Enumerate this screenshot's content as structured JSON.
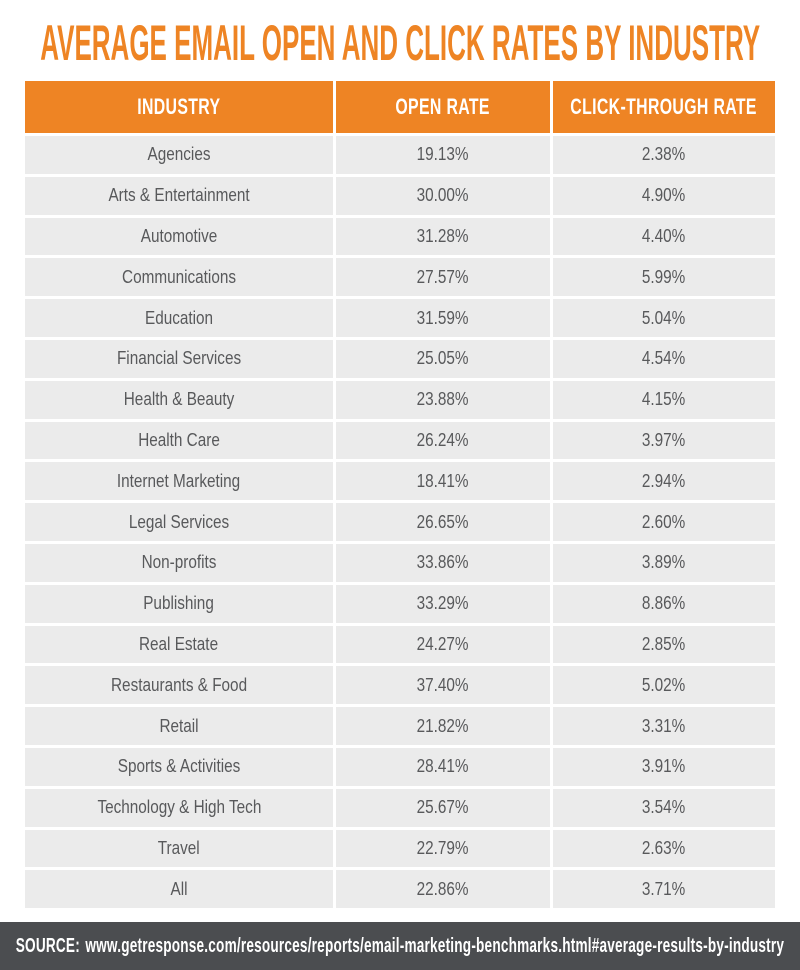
{
  "title": "AVERAGE EMAIL OPEN AND CLICK RATES BY INDUSTRY",
  "colors": {
    "accent_orange": "#EE8424",
    "row_bg": "#EBEBEB",
    "body_text": "#58595B",
    "footer_bg": "#4B4D50",
    "header_text": "#FFFFFF",
    "footer_text": "#FFFFFF"
  },
  "table": {
    "headers": [
      "INDUSTRY",
      "OPEN RATE",
      "CLICK-THROUGH RATE"
    ],
    "rows": [
      {
        "industry": "Agencies",
        "open_rate": "19.13%",
        "click_rate": "2.38%"
      },
      {
        "industry": "Arts & Entertainment",
        "open_rate": "30.00%",
        "click_rate": "4.90%"
      },
      {
        "industry": "Automotive",
        "open_rate": "31.28%",
        "click_rate": "4.40%"
      },
      {
        "industry": "Communications",
        "open_rate": "27.57%",
        "click_rate": "5.99%"
      },
      {
        "industry": "Education",
        "open_rate": "31.59%",
        "click_rate": "5.04%"
      },
      {
        "industry": "Financial Services",
        "open_rate": "25.05%",
        "click_rate": "4.54%"
      },
      {
        "industry": "Health & Beauty",
        "open_rate": "23.88%",
        "click_rate": "4.15%"
      },
      {
        "industry": "Health Care",
        "open_rate": "26.24%",
        "click_rate": "3.97%"
      },
      {
        "industry": "Internet Marketing",
        "open_rate": "18.41%",
        "click_rate": "2.94%"
      },
      {
        "industry": "Legal Services",
        "open_rate": "26.65%",
        "click_rate": "2.60%"
      },
      {
        "industry": "Non-profits",
        "open_rate": "33.86%",
        "click_rate": "3.89%"
      },
      {
        "industry": "Publishing",
        "open_rate": "33.29%",
        "click_rate": "8.86%"
      },
      {
        "industry": "Real Estate",
        "open_rate": "24.27%",
        "click_rate": "2.85%"
      },
      {
        "industry": "Restaurants & Food",
        "open_rate": "37.40%",
        "click_rate": "5.02%"
      },
      {
        "industry": "Retail",
        "open_rate": "21.82%",
        "click_rate": "3.31%"
      },
      {
        "industry": "Sports & Activities",
        "open_rate": "28.41%",
        "click_rate": "3.91%"
      },
      {
        "industry": "Technology & High Tech",
        "open_rate": "25.67%",
        "click_rate": "3.54%"
      },
      {
        "industry": "Travel",
        "open_rate": "22.79%",
        "click_rate": "2.63%"
      },
      {
        "industry": "All",
        "open_rate": "22.86%",
        "click_rate": "3.71%"
      }
    ]
  },
  "footer": {
    "source_label": "SOURCE:",
    "source_url": "www.getresponse.com/resources/reports/email-marketing-benchmarks.html#average-results-by-industry"
  },
  "chart_data": {
    "type": "table",
    "title": "AVERAGE EMAIL OPEN AND CLICK RATES BY INDUSTRY",
    "columns": [
      "Industry",
      "Open Rate (%)",
      "Click-Through Rate (%)"
    ],
    "rows": [
      [
        "Agencies",
        19.13,
        2.38
      ],
      [
        "Arts & Entertainment",
        30.0,
        4.9
      ],
      [
        "Automotive",
        31.28,
        4.4
      ],
      [
        "Communications",
        27.57,
        5.99
      ],
      [
        "Education",
        31.59,
        5.04
      ],
      [
        "Financial Services",
        25.05,
        4.54
      ],
      [
        "Health & Beauty",
        23.88,
        4.15
      ],
      [
        "Health Care",
        26.24,
        3.97
      ],
      [
        "Internet Marketing",
        18.41,
        2.94
      ],
      [
        "Legal Services",
        26.65,
        2.6
      ],
      [
        "Non-profits",
        33.86,
        3.89
      ],
      [
        "Publishing",
        33.29,
        8.86
      ],
      [
        "Real Estate",
        24.27,
        2.85
      ],
      [
        "Restaurants & Food",
        37.4,
        5.02
      ],
      [
        "Retail",
        21.82,
        3.31
      ],
      [
        "Sports & Activities",
        28.41,
        3.91
      ],
      [
        "Technology & High Tech",
        25.67,
        3.54
      ],
      [
        "Travel",
        22.79,
        2.63
      ],
      [
        "All",
        22.86,
        3.71
      ]
    ]
  }
}
